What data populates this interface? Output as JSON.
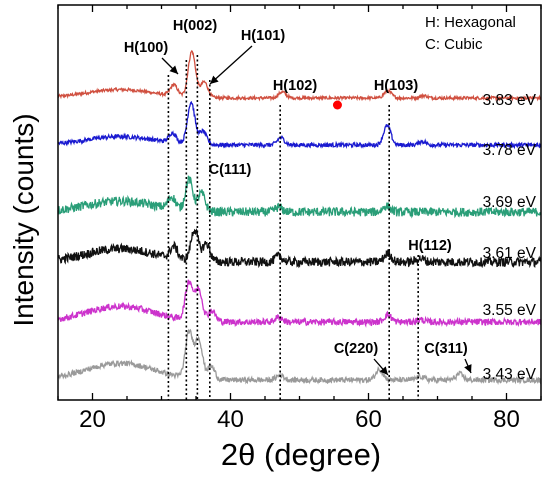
{
  "chart_data": {
    "type": "line",
    "xlabel": "2θ (degree)",
    "ylabel": "Intensity (counts)",
    "xlim": [
      15,
      85
    ],
    "x_ticks": [
      "20",
      "40",
      "60",
      "80"
    ],
    "y_ticks_shown": false,
    "legend_text": [
      "H: Hexagonal",
      "C: Cubic"
    ],
    "reference_lines_2theta": [
      31.0,
      33.6,
      35.2,
      37.0,
      47.2,
      63.0,
      67.2
    ],
    "peak_labels": [
      {
        "text": "H(100)",
        "x": 31.0
      },
      {
        "text": "H(002)",
        "x": 34.4
      },
      {
        "text": "H(101)",
        "x": 36.0
      },
      {
        "text": "H(102)",
        "x": 47.5
      },
      {
        "text": "H(103)",
        "x": 63.0
      },
      {
        "text": "C(111)",
        "x": 37.3
      },
      {
        "text": "H(112)",
        "x": 67.5
      },
      {
        "text": "C(220)",
        "x": 60.0
      },
      {
        "text": "C(311)",
        "x": 73.0
      }
    ],
    "marker": {
      "x": 55.5,
      "series": "3.83 eV",
      "color": "#ff0000"
    },
    "series": [
      {
        "name": "3.83 eV",
        "color": "#d05040",
        "bg_amorphous": 0.7,
        "peaks": [
          [
            34.4,
            3.8
          ],
          [
            31.8,
            0.9
          ],
          [
            36.2,
            1.3
          ],
          [
            47.5,
            0.5
          ],
          [
            62.8,
            0.6
          ],
          [
            68.0,
            0.2
          ]
        ],
        "noise": 0.25
      },
      {
        "name": "3.78 eV",
        "color": "#1a1ad0",
        "bg_amorphous": 0.7,
        "peaks": [
          [
            34.3,
            3.5
          ],
          [
            31.6,
            0.8
          ],
          [
            36.0,
            1.1
          ],
          [
            47.3,
            0.6
          ],
          [
            62.7,
            1.6
          ],
          [
            67.8,
            0.3
          ]
        ],
        "noise": 0.35
      },
      {
        "name": "3.69 eV",
        "color": "#2a9e78",
        "bg_amorphous": 0.9,
        "peaks": [
          [
            34.0,
            2.6
          ],
          [
            31.5,
            1.0
          ],
          [
            35.8,
            1.5
          ],
          [
            47.0,
            0.4
          ],
          [
            62.6,
            0.5
          ]
        ],
        "noise": 0.75
      },
      {
        "name": "3.61 eV",
        "color": "#111111",
        "bg_amorphous": 1.1,
        "peaks": [
          [
            34.8,
            2.6
          ],
          [
            31.8,
            1.0
          ],
          [
            36.5,
            1.5
          ],
          [
            47.0,
            0.5
          ],
          [
            62.8,
            0.7
          ],
          [
            67.5,
            0.3
          ]
        ],
        "noise": 0.75
      },
      {
        "name": "3.55 eV",
        "color": "#cc33cc",
        "bg_amorphous": 1.3,
        "peaks": [
          [
            34.0,
            3.2
          ],
          [
            35.4,
            2.6
          ],
          [
            37.3,
            0.9
          ],
          [
            47.0,
            0.4
          ],
          [
            62.8,
            0.6
          ],
          [
            67.5,
            0.2
          ]
        ],
        "noise": 0.55
      },
      {
        "name": "3.43 eV",
        "color": "#9a9a9a",
        "bg_amorphous": 1.4,
        "peaks": [
          [
            34.0,
            3.8
          ],
          [
            35.4,
            3.3
          ],
          [
            37.2,
            1.1
          ],
          [
            47.2,
            0.4
          ],
          [
            61.6,
            0.9
          ],
          [
            67.5,
            0.3
          ],
          [
            73.2,
            0.5
          ]
        ],
        "noise": 0.45
      }
    ]
  }
}
